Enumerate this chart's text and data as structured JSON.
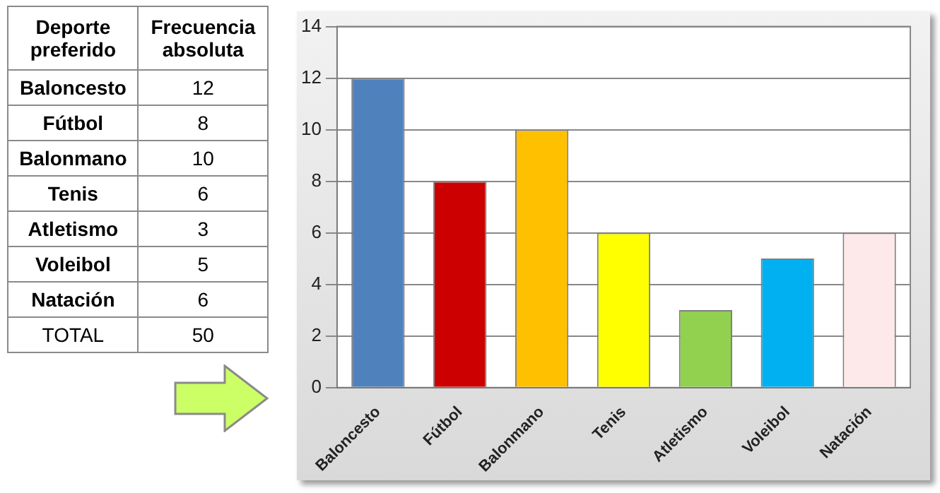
{
  "chart_data": [
    {
      "type": "other",
      "annotations": [
        "Deporte preferido",
        "Frecuencia absoluta",
        "12",
        "8",
        "10",
        "6",
        "3",
        "5",
        "6",
        "TOTAL",
        "50"
      ],
      "categories": [
        "Baloncesto",
        "Fútbol",
        "Balonmano",
        "Tenis",
        "Atletismo",
        "Voleibol",
        "Natación"
      ]
    },
    {
      "type": "bar",
      "categories": [
        "Baloncesto",
        "Fútbol",
        "Balonmano",
        "Tenis",
        "Atletismo",
        "Voleibol",
        "Natación"
      ],
      "values": [
        12,
        8,
        10,
        6,
        3,
        5,
        6
      ],
      "colors": [
        "#4f81bd",
        "#cc0000",
        "#ffc000",
        "#ffff00",
        "#92d050",
        "#00b0f0",
        "#fde9e9"
      ],
      "ylim": [
        0,
        14
      ],
      "yticks": [
        0,
        2,
        4,
        6,
        8,
        10,
        12,
        14
      ],
      "grid": "y"
    }
  ]
}
